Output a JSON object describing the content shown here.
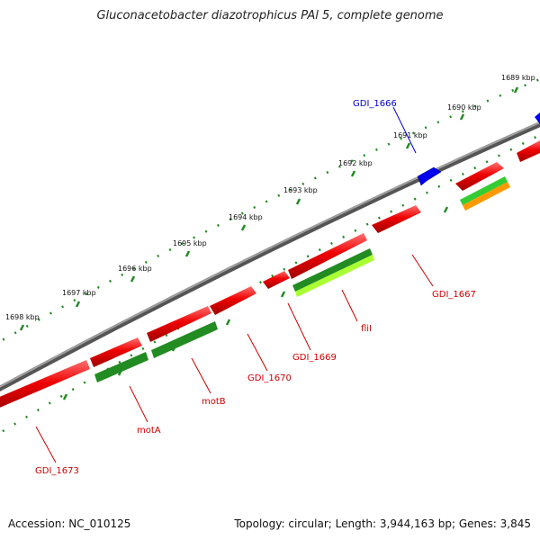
{
  "title": "Gluconacetobacter diazotrophicus PAl 5, complete genome",
  "footer": {
    "accession": "Accession: NC_010125",
    "topology": "Topology: circular; Length: 3,944,163 bp; Genes: 3,845"
  },
  "ticks": [
    {
      "label": "1689 kbp"
    },
    {
      "label": "1690 kbp"
    },
    {
      "label": "1691 kbp"
    },
    {
      "label": "1692 kbp"
    },
    {
      "label": "1693 kbp"
    },
    {
      "label": "1694 kbp"
    },
    {
      "label": "1695 kbp"
    },
    {
      "label": "1696 kbp"
    },
    {
      "label": "1697 kbp"
    },
    {
      "label": "1698 kbp"
    }
  ],
  "gene_labels": [
    {
      "label": "GDI_1666",
      "color": "#0000cc"
    },
    {
      "label": "GDI_1667",
      "color": "#cc0000"
    },
    {
      "label": "fliI",
      "color": "#cc0000"
    },
    {
      "label": "GDI_1669",
      "color": "#cc0000"
    },
    {
      "label": "GDI_1670",
      "color": "#cc0000"
    },
    {
      "label": "motB",
      "color": "#cc0000"
    },
    {
      "label": "motA",
      "color": "#cc0000"
    },
    {
      "label": "GDI_1673",
      "color": "#cc0000"
    }
  ],
  "colors": {
    "backbone": "#808080",
    "gene_red": "#ee0000",
    "gene_blue": "#0000ee",
    "gene_green": "#228b22",
    "gene_lightgreen": "#aaff33",
    "gene_orange": "#ff9900",
    "ruler": "#228b22"
  }
}
